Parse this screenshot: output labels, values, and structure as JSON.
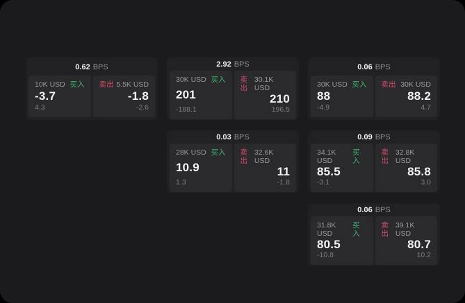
{
  "theme": {
    "colors": {
      "outer": "#000000",
      "page": "#1b1b1d",
      "card": "#212124",
      "tile": "#2a2a2d",
      "text": "#f2f2f2",
      "muted": "#8e8e8e",
      "buy": "#3cb873",
      "sell": "#d14b69"
    }
  },
  "labels": {
    "bps": "BPS",
    "buy": "买入",
    "sell": "卖出"
  },
  "cards": [
    {
      "bps": "0.62",
      "buy": {
        "size": "10K USD",
        "value": "-3.7",
        "delta": "4.3"
      },
      "sell": {
        "size": "5.5K USD",
        "value": "-1.8",
        "delta": "-2.6"
      }
    },
    {
      "bps": "2.92",
      "buy": {
        "size": "30K USD",
        "value": "201",
        "delta": "-188.1"
      },
      "sell": {
        "size": "30.1K USD",
        "value": "210",
        "delta": "196.5"
      }
    },
    {
      "bps": "0.06",
      "buy": {
        "size": "30K USD",
        "value": "88",
        "delta": "-4.9"
      },
      "sell": {
        "size": "30K USD",
        "value": "88.2",
        "delta": "4.7"
      }
    },
    {
      "bps": "0.03",
      "buy": {
        "size": "28K USD",
        "value": "10.9",
        "delta": "1.3"
      },
      "sell": {
        "size": "32.6K USD",
        "value": "11",
        "delta": "-1.8"
      }
    },
    {
      "bps": "0.09",
      "buy": {
        "size": "34.1K USD",
        "value": "85.5",
        "delta": "-3.1"
      },
      "sell": {
        "size": "32.8K USD",
        "value": "85.8",
        "delta": "3.0"
      }
    },
    {
      "bps": "0.06",
      "buy": {
        "size": "31.8K USD",
        "value": "80.5",
        "delta": "-10.8"
      },
      "sell": {
        "size": "39.1K USD",
        "value": "80.7",
        "delta": "10.2"
      }
    }
  ]
}
